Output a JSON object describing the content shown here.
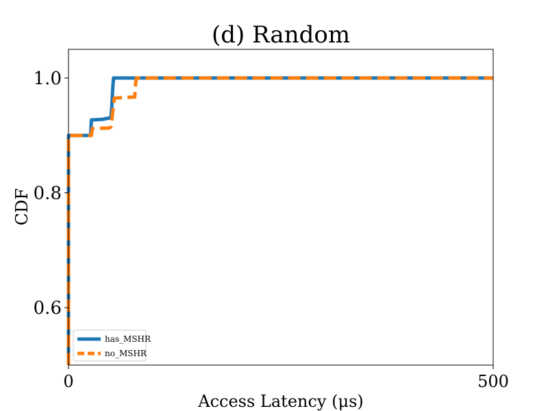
{
  "chart_data": {
    "type": "line",
    "title": "(d) Random",
    "xlabel": "Access Latency (μs)",
    "ylabel": "CDF",
    "xlim": [
      0,
      500
    ],
    "ylim": [
      0.5,
      1.05
    ],
    "xticks": [
      0,
      500
    ],
    "xtick_labels": [
      "0",
      "500"
    ],
    "yticks": [
      0.6,
      0.8,
      1.0
    ],
    "ytick_labels": [
      "0.6",
      "0.8",
      "1.0"
    ],
    "grid": false,
    "legend_position": "lower-left",
    "series": [
      {
        "name": "has_MSHR",
        "color": "#1f77b4",
        "dash": "solid",
        "x": [
          0,
          0,
          2,
          26,
          27,
          40,
          50,
          51,
          52,
          53,
          55,
          60,
          70,
          500
        ],
        "y": [
          0.5,
          0.9,
          0.9,
          0.9,
          0.927,
          0.928,
          0.931,
          0.95,
          0.98,
          1.0,
          1.0,
          1.0,
          1.0,
          1.0
        ]
      },
      {
        "name": "no_MSHR",
        "color": "#ff7f0e",
        "dash": "dashed",
        "x": [
          0,
          0,
          3,
          27,
          28,
          48,
          50,
          52,
          54,
          78,
          79,
          80,
          500
        ],
        "y": [
          0.5,
          0.9,
          0.9,
          0.9,
          0.912,
          0.913,
          0.915,
          0.94,
          0.965,
          0.967,
          0.99,
          1.0,
          1.0
        ]
      }
    ]
  }
}
